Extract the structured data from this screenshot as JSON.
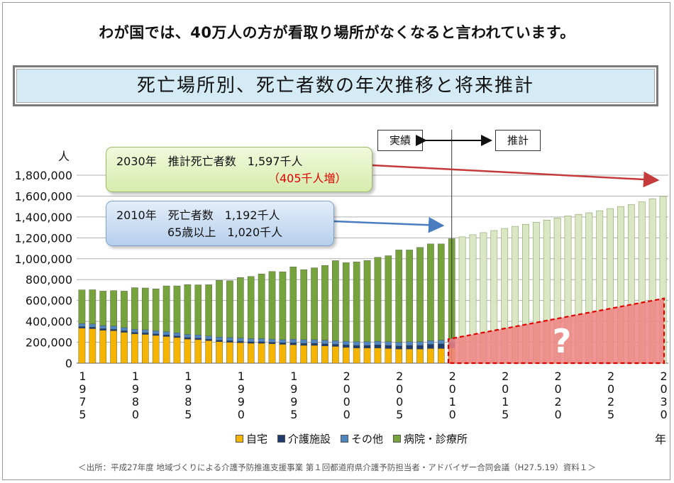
{
  "headline": "わが国では、40万人の方が看取り場所がなくなると言われています。",
  "banner_title": "死亡場所別、死亡者数の年次推移と将来推計",
  "tags": {
    "actual": "実績",
    "estimate": "推計"
  },
  "callout_2030": {
    "line1": "2030年　推計死亡者数　1,597千人",
    "line2": "（405千人増）"
  },
  "callout_2010": {
    "line1": "2010年　死亡者数　1,192千人",
    "line2": "65歳以上　1,020千人"
  },
  "question_mark": "?",
  "source": "＜出所：平成27年度 地域づくりによる介護予防推進支援事業 第１回都道府県介護予防担当者・アドバイザー合同会議（H27.5.19）資料１＞",
  "chart_data": {
    "type": "bar",
    "stacked": true,
    "y_unit_label": "人",
    "x_unit_label": "年",
    "ylim": [
      0,
      1800000
    ],
    "yticks": [
      "1,800,000",
      "1,600,000",
      "1,400,000",
      "1,200,000",
      "1,000,000",
      "800,000",
      "600,000",
      "400,000",
      "200,000",
      "0"
    ],
    "x_tick_labels": [
      "1975",
      "1980",
      "1985",
      "1990",
      "1995",
      "2000",
      "2005",
      "2010",
      "2015",
      "2020",
      "2025",
      "2030"
    ],
    "x_start": 1975,
    "x_end": 2030,
    "actual_end": 2010,
    "legend_position": "bottom",
    "legend": [
      "自宅",
      "介護施設",
      "その他",
      "病院・診療所"
    ],
    "colors": {
      "home": "#f5b400",
      "care": "#1f3d6b",
      "other": "#4f86c0",
      "hospital": "#77a33d",
      "projection": "#dbe7c4",
      "unknown": "#ee8383",
      "unknown_border": "#e00000"
    },
    "years": [
      1975,
      1976,
      1977,
      1978,
      1979,
      1980,
      1981,
      1982,
      1983,
      1984,
      1985,
      1986,
      1987,
      1988,
      1989,
      1990,
      1991,
      1992,
      1993,
      1994,
      1995,
      1996,
      1997,
      1998,
      1999,
      2000,
      2001,
      2002,
      2003,
      2004,
      2005,
      2006,
      2007,
      2008,
      2009,
      2010,
      2011,
      2012,
      2013,
      2014,
      2015,
      2016,
      2017,
      2018,
      2019,
      2020,
      2021,
      2022,
      2023,
      2024,
      2025,
      2026,
      2027,
      2028,
      2029,
      2030
    ],
    "totals": [
      702000,
      703000,
      690000,
      695000,
      690000,
      723000,
      720000,
      712000,
      740000,
      740000,
      752000,
      750000,
      751000,
      793000,
      789000,
      820000,
      830000,
      855000,
      878000,
      875000,
      922000,
      896000,
      913000,
      936000,
      982000,
      962000,
      970000,
      983000,
      1014000,
      1029000,
      1084000,
      1084000,
      1108000,
      1142000,
      1142000,
      1192000,
      1210000,
      1230000,
      1250000,
      1270000,
      1290000,
      1310000,
      1330000,
      1350000,
      1370000,
      1390000,
      1410000,
      1425000,
      1440000,
      1460000,
      1480000,
      1500000,
      1520000,
      1545000,
      1575000,
      1597000
    ],
    "series": [
      {
        "name": "自宅",
        "values": [
          335000,
          330000,
          315000,
          310000,
          295000,
          280000,
          275000,
          265000,
          255000,
          245000,
          230000,
          225000,
          215000,
          205000,
          200000,
          195000,
          190000,
          190000,
          185000,
          180000,
          175000,
          170000,
          170000,
          165000,
          160000,
          150000,
          145000,
          145000,
          145000,
          140000,
          135000,
          135000,
          135000,
          140000,
          140000,
          145000
        ]
      },
      {
        "name": "介護施設",
        "values": [
          15000,
          15000,
          15000,
          15000,
          15000,
          15000,
          15000,
          15000,
          15000,
          15000,
          15000,
          15000,
          15000,
          15000,
          15000,
          15000,
          15000,
          15000,
          15000,
          15000,
          20000,
          20000,
          20000,
          20000,
          20000,
          25000,
          25000,
          25000,
          30000,
          30000,
          30000,
          35000,
          35000,
          40000,
          45000,
          50000
        ]
      },
      {
        "name": "その他",
        "values": [
          30000,
          30000,
          30000,
          30000,
          30000,
          30000,
          30000,
          30000,
          30000,
          30000,
          30000,
          30000,
          30000,
          30000,
          30000,
          30000,
          30000,
          30000,
          30000,
          30000,
          35000,
          35000,
          35000,
          35000,
          35000,
          35000,
          35000,
          35000,
          35000,
          35000,
          35000,
          35000,
          35000,
          35000,
          35000,
          35000
        ]
      },
      {
        "name": "病院・診療所",
        "values": [
          322000,
          328000,
          330000,
          340000,
          350000,
          398000,
          400000,
          402000,
          440000,
          450000,
          477000,
          480000,
          491000,
          543000,
          544000,
          580000,
          595000,
          620000,
          648000,
          650000,
          692000,
          671000,
          688000,
          716000,
          767000,
          752000,
          765000,
          778000,
          804000,
          824000,
          884000,
          879000,
          903000,
          927000,
          922000,
          962000
        ]
      }
    ],
    "unknown_region": {
      "label": "?",
      "start": 2010,
      "start_value": 230000,
      "end": 2030,
      "end_value": 620000
    }
  }
}
